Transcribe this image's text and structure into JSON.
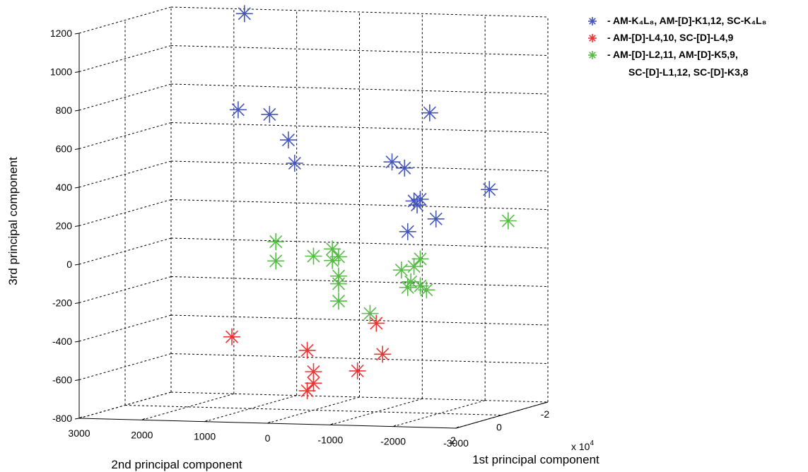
{
  "chart_data": {
    "type": "scatter",
    "projection": "3d",
    "title": "",
    "xlabel": "2nd principal component",
    "ylabel": "1st principal component",
    "zlabel": "3rd principal component",
    "scale_note": "x 10",
    "scale_exponent": "4",
    "x_ticks": [
      "3000",
      "2000",
      "1000",
      "0",
      "-1000",
      "-2000",
      "-3000"
    ],
    "y_ticks": [
      "-2",
      "0",
      "2"
    ],
    "z_ticks": [
      "1200",
      "1000",
      "800",
      "600",
      "400",
      "200",
      "0",
      "-200",
      "-400",
      "-600",
      "-800"
    ],
    "zlim": [
      -800,
      1200
    ],
    "grid": true,
    "legend_position": "top-right",
    "series": [
      {
        "name": "- AM-K₄L₈, AM-[D]-K1,12, SC-K₄L₈",
        "color": "#4455bb",
        "marker": "asterisk",
        "points": [
          {
            "x": 1100,
            "z": 1250
          },
          {
            "x": 1200,
            "z": 750
          },
          {
            "x": 700,
            "z": 730
          },
          {
            "x": 400,
            "z": 600
          },
          {
            "x": 300,
            "z": 480
          },
          {
            "x": -1250,
            "z": 500
          },
          {
            "x": -1450,
            "z": 470
          },
          {
            "x": -1600,
            "z": 300
          },
          {
            "x": -1650,
            "z": 280
          },
          {
            "x": -1700,
            "z": 310
          },
          {
            "x": -1950,
            "z": 210
          },
          {
            "x": -1500,
            "z": 140
          },
          {
            "x": -1850,
            "z": 760
          },
          {
            "x": -2800,
            "z": 370
          }
        ]
      },
      {
        "name": "- AM-[D]-L4,10,  SC-[D]-L4,9",
        "color": "#ee3333",
        "marker": "asterisk",
        "points": [
          {
            "x": 1300,
            "z": -430
          },
          {
            "x": 100,
            "z": -490
          },
          {
            "x": 0,
            "z": -600
          },
          {
            "x": 0,
            "z": -660
          },
          {
            "x": 100,
            "z": -700
          },
          {
            "x": -700,
            "z": -590
          },
          {
            "x": -1000,
            "z": -340
          },
          {
            "x": -1100,
            "z": -500
          }
        ]
      },
      {
        "name": "- AM-[D]-L2,11, AM-[D]-K5,9,",
        "name_line2": "SC-[D]-L1,12, SC-[D]-K3,8",
        "color": "#55bb44",
        "marker": "asterisk",
        "points": [
          {
            "x": 600,
            "z": 70
          },
          {
            "x": 600,
            "z": -30
          },
          {
            "x": 0,
            "z": 0
          },
          {
            "x": -300,
            "z": 40
          },
          {
            "x": -400,
            "z": 0
          },
          {
            "x": -300,
            "z": -20
          },
          {
            "x": -400,
            "z": -100
          },
          {
            "x": -400,
            "z": -140
          },
          {
            "x": -400,
            "z": -230
          },
          {
            "x": -900,
            "z": -290
          },
          {
            "x": -1400,
            "z": -60
          },
          {
            "x": -1550,
            "z": -120
          },
          {
            "x": -1600,
            "z": -40
          },
          {
            "x": -1700,
            "z": 0
          },
          {
            "x": -1700,
            "z": -140
          },
          {
            "x": -1800,
            "z": -160
          },
          {
            "x": -1500,
            "z": -150
          },
          {
            "x": -3100,
            "z": 210
          }
        ]
      }
    ]
  }
}
